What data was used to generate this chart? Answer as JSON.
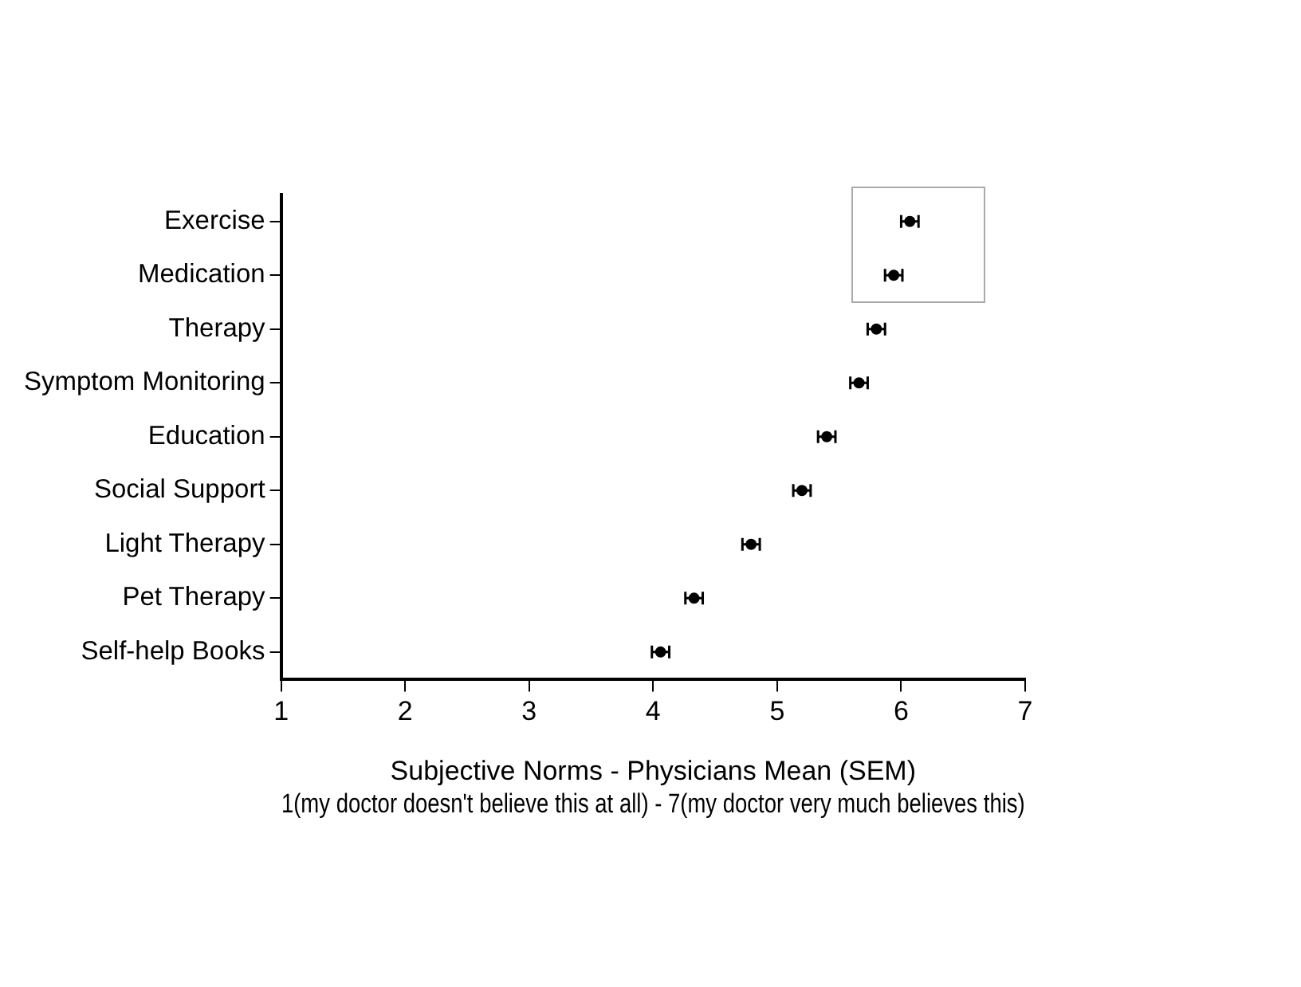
{
  "chart_data": {
    "type": "scatter",
    "orientation": "horizontal",
    "xlabel": "Subjective Norms - Physicians Mean (SEM)\n1(my doctor doesn't believe this at all) - 7(my doctor very much believes this)",
    "categories": [
      "Exercise",
      "Medication",
      "Therapy",
      "Symptom Monitoring",
      "Education",
      "Social Support",
      "Light Therapy",
      "Pet Therapy",
      "Self-help Books"
    ],
    "values": [
      6.07,
      5.94,
      5.8,
      5.66,
      5.4,
      5.2,
      4.79,
      4.33,
      4.06
    ],
    "errors": [
      0.07,
      0.07,
      0.07,
      0.07,
      0.07,
      0.07,
      0.07,
      0.07,
      0.07
    ],
    "color": "#000000",
    "marker": "circle",
    "xlim": [
      1,
      7
    ],
    "xticks": [
      1,
      2,
      3,
      4,
      5,
      6,
      7
    ],
    "legend": false,
    "grid": false
  }
}
